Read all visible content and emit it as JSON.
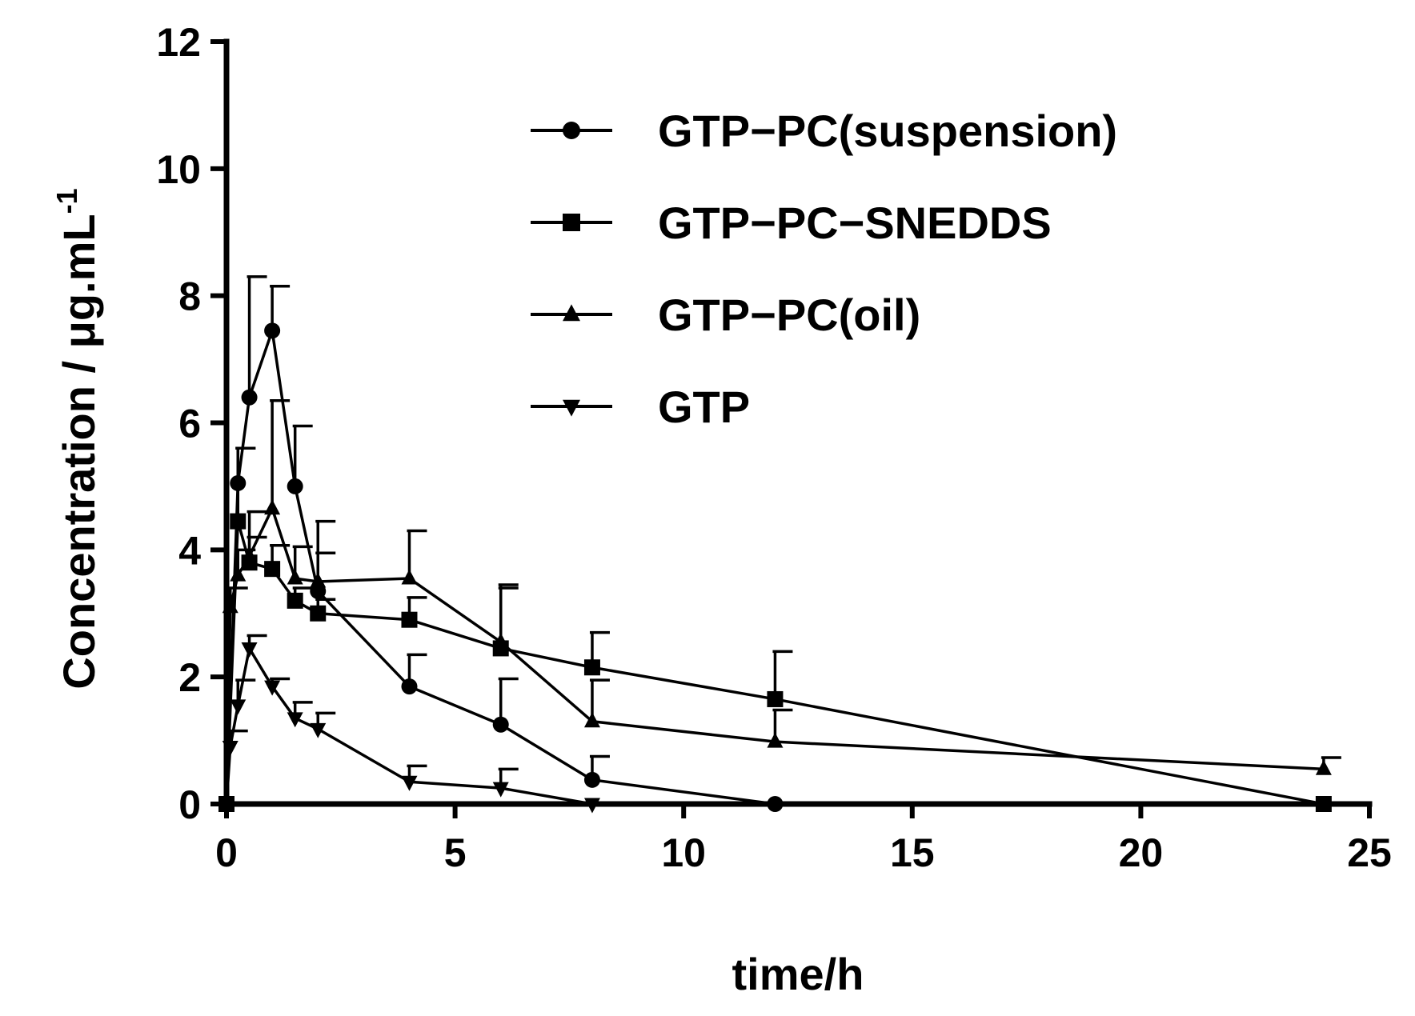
{
  "chart_data": {
    "type": "line",
    "xlabel": "time/h",
    "ylabel": "Concentration / μg.mL",
    "ylabel_superscript": "-1",
    "xlim": [
      0,
      25
    ],
    "ylim": [
      0,
      12
    ],
    "x_ticks": [
      0,
      5,
      10,
      15,
      20,
      25
    ],
    "y_ticks": [
      0,
      2,
      4,
      6,
      8,
      10,
      12
    ],
    "grid": false,
    "legend_position": "top-right",
    "series": [
      {
        "name": "GTP−PC(suspension)",
        "marker": "circle",
        "x": [
          0,
          0.25,
          0.5,
          1,
          1.5,
          2,
          4,
          6,
          8,
          12
        ],
        "y": [
          0,
          5.05,
          6.4,
          7.45,
          5.0,
          3.35,
          1.85,
          1.25,
          0.38,
          0
        ],
        "err": [
          0,
          0.55,
          1.9,
          0.7,
          0.95,
          0.6,
          0.5,
          0.72,
          0.37,
          0
        ]
      },
      {
        "name": "GTP−PC−SNEDDS",
        "marker": "square",
        "x": [
          0,
          0.25,
          0.5,
          1,
          1.5,
          2,
          4,
          6,
          8,
          12,
          24
        ],
        "y": [
          0,
          4.45,
          3.8,
          3.7,
          3.2,
          3.0,
          2.9,
          2.45,
          2.15,
          1.65,
          0
        ],
        "err": [
          0,
          1.15,
          0.4,
          0.37,
          0.2,
          0.22,
          0.35,
          0.95,
          0.55,
          0.75,
          0
        ]
      },
      {
        "name": "GTP−PC(oil)",
        "marker": "triangle-up",
        "x": [
          0,
          0.083,
          0.25,
          0.5,
          1,
          1.5,
          2,
          4,
          6,
          8,
          12,
          24
        ],
        "y": [
          0,
          3.1,
          3.6,
          3.9,
          4.65,
          3.55,
          3.5,
          3.55,
          2.55,
          1.3,
          0.98,
          0.55
        ],
        "err": [
          0,
          0.3,
          0.4,
          0.7,
          1.7,
          0.5,
          0.95,
          0.75,
          0.9,
          0.65,
          0.5,
          0.18
        ]
      },
      {
        "name": "GTP",
        "marker": "triangle-down",
        "x": [
          0,
          0.083,
          0.25,
          0.5,
          1,
          1.5,
          2,
          4,
          6,
          8
        ],
        "y": [
          0,
          0.9,
          1.55,
          2.45,
          1.85,
          1.35,
          1.18,
          0.35,
          0.25,
          0
        ],
        "err": [
          0,
          0.25,
          0.4,
          0.2,
          0.12,
          0.25,
          0.25,
          0.25,
          0.3,
          0
        ]
      }
    ]
  }
}
